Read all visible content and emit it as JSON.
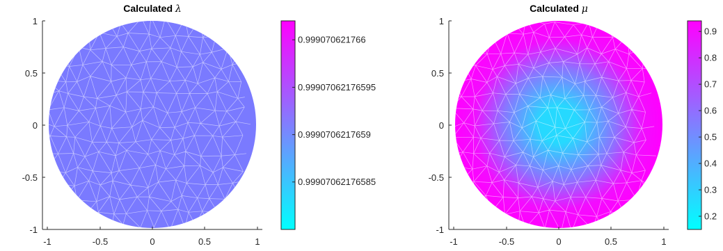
{
  "chart_data": [
    {
      "type": "heatmap",
      "title_prefix": "Calculated",
      "title_symbol": "λ",
      "x_ticks": [
        "-1",
        "-0.5",
        "0",
        "0.5",
        "1"
      ],
      "y_ticks": [
        "1",
        "0.5",
        "0",
        "-0.5",
        "-1"
      ],
      "xlim": [
        -1.05,
        1.05
      ],
      "ylim": [
        -1,
        1
      ],
      "field": "uniform",
      "field_value": 0.9990706217659,
      "colorbar": {
        "colors": [
          "#00ffff",
          "#ff00ff"
        ],
        "range": [
          0.9990706217658,
          0.99907062176602
        ],
        "ticks": [
          {
            "value": 0.999070621766,
            "label": "0.999070621766"
          },
          {
            "value": 0.99907062176595,
            "label": "0.99907062176595"
          },
          {
            "value": 0.9990706217659,
            "label": "0.9990706217659"
          },
          {
            "value": 0.99907062176585,
            "label": "0.99907062176585"
          }
        ]
      }
    },
    {
      "type": "heatmap",
      "title_prefix": "Calculated",
      "title_symbol": "μ",
      "x_ticks": [
        "-1",
        "-0.5",
        "0",
        "0.5",
        "1"
      ],
      "y_ticks": [
        "1",
        "0.5",
        "0",
        "-0.5",
        "-1"
      ],
      "xlim": [
        -1.05,
        1.05
      ],
      "ylim": [
        -1,
        1
      ],
      "field": "radial",
      "field_center_value": 0.15,
      "field_edge_value": 0.93,
      "colorbar": {
        "colors": [
          "#00ffff",
          "#ff00ff"
        ],
        "range": [
          0.15,
          0.94
        ],
        "ticks": [
          {
            "value": 0.9,
            "label": "0.9"
          },
          {
            "value": 0.8,
            "label": "0.8"
          },
          {
            "value": 0.7,
            "label": "0.7"
          },
          {
            "value": 0.6,
            "label": "0.6"
          },
          {
            "value": 0.5,
            "label": "0.5"
          },
          {
            "value": 0.4,
            "label": "0.4"
          },
          {
            "value": 0.3,
            "label": "0.3"
          },
          {
            "value": 0.2,
            "label": "0.2"
          }
        ]
      }
    }
  ]
}
